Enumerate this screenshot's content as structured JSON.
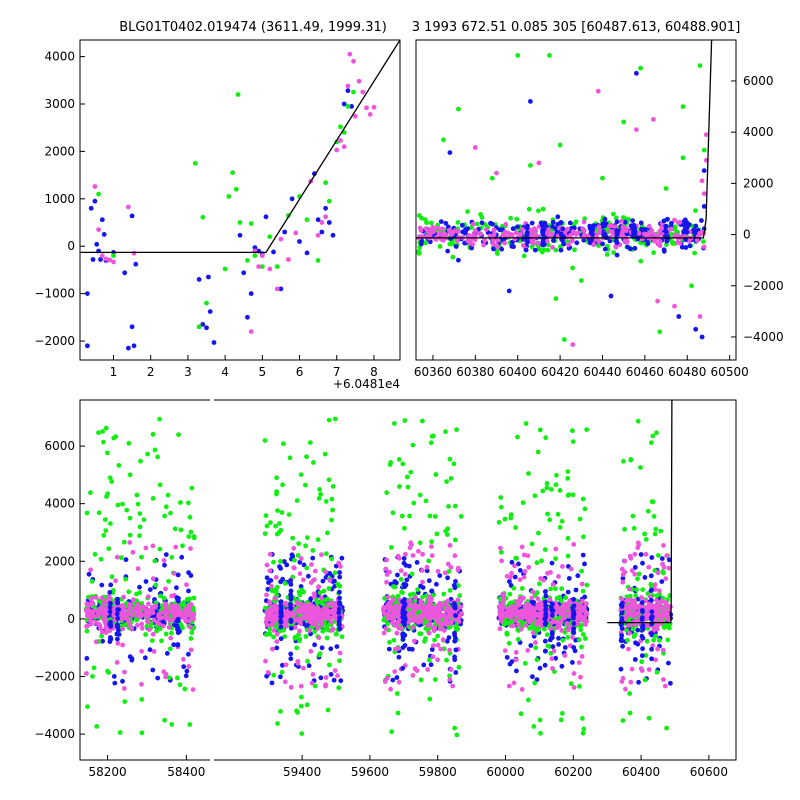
{
  "chart_data": [
    {
      "type": "scatter",
      "title": "BLG01T0402.019474 (3611.49, 1999.31)",
      "x_offset_label": "+6.0481e4",
      "xlim": [
        0.1,
        8.7
      ],
      "ylim": [
        -2400,
        4350
      ],
      "x_ticks": [
        "1",
        "2",
        "3",
        "4",
        "5",
        "6",
        "7",
        "8"
      ],
      "y_ticks": [
        "4000",
        "3000",
        "2000",
        "1000",
        "0",
        "−1000",
        "−2000"
      ],
      "model": {
        "x": [
          0.1,
          5.1,
          8.7
        ],
        "y": [
          -130,
          -130,
          4350
        ]
      },
      "series": [
        {
          "color": "#1515ee",
          "points": [
            [
              0.3,
              -1000
            ],
            [
              0.3,
              -2100
            ],
            [
              0.4,
              800
            ],
            [
              0.45,
              -280
            ],
            [
              0.5,
              950
            ],
            [
              0.55,
              40
            ],
            [
              0.6,
              -100
            ],
            [
              0.65,
              -280
            ],
            [
              0.7,
              560
            ],
            [
              0.75,
              250
            ],
            [
              0.8,
              -300
            ],
            [
              1.0,
              -130
            ],
            [
              1.3,
              -560
            ],
            [
              1.5,
              640
            ],
            [
              1.5,
              -1700
            ],
            [
              1.4,
              -2150
            ],
            [
              1.55,
              -2100
            ],
            [
              1.6,
              -380
            ],
            [
              3.3,
              -700
            ],
            [
              3.4,
              -1650
            ],
            [
              3.5,
              -1720
            ],
            [
              3.55,
              -650
            ],
            [
              3.6,
              -1380
            ],
            [
              3.7,
              -2030
            ],
            [
              4.4,
              230
            ],
            [
              4.5,
              -560
            ],
            [
              4.6,
              -1500
            ],
            [
              4.7,
              -1000
            ],
            [
              4.8,
              -30
            ],
            [
              4.9,
              -100
            ],
            [
              5.0,
              -160
            ],
            [
              5.1,
              620
            ],
            [
              5.3,
              -120
            ],
            [
              5.5,
              -900
            ],
            [
              5.6,
              300
            ],
            [
              5.8,
              1000
            ],
            [
              6.0,
              100
            ],
            [
              6.2,
              -140
            ],
            [
              6.4,
              1530
            ],
            [
              6.5,
              560
            ],
            [
              6.6,
              300
            ],
            [
              6.7,
              800
            ],
            [
              6.8,
              500
            ],
            [
              6.9,
              230
            ],
            [
              7.2,
              3000
            ],
            [
              7.3,
              3280
            ],
            [
              7.4,
              2950
            ]
          ]
        },
        {
          "color": "#11ee11",
          "points": [
            [
              0.6,
              1100
            ],
            [
              1.0,
              -200
            ],
            [
              3.2,
              1750
            ],
            [
              3.3,
              -1700
            ],
            [
              3.4,
              610
            ],
            [
              3.5,
              -1200
            ],
            [
              4.0,
              -480
            ],
            [
              4.1,
              1050
            ],
            [
              4.2,
              1550
            ],
            [
              4.3,
              1200
            ],
            [
              4.35,
              3200
            ],
            [
              4.4,
              500
            ],
            [
              4.6,
              -300
            ],
            [
              4.7,
              480
            ],
            [
              4.8,
              -200
            ],
            [
              5.0,
              -430
            ],
            [
              5.2,
              200
            ],
            [
              5.4,
              -430
            ],
            [
              5.7,
              650
            ],
            [
              6.0,
              1050
            ],
            [
              6.2,
              560
            ],
            [
              6.5,
              -300
            ],
            [
              6.7,
              1340
            ],
            [
              6.8,
              950
            ],
            [
              7.0,
              2200
            ],
            [
              7.1,
              2520
            ],
            [
              7.2,
              2400
            ],
            [
              7.3,
              2950
            ],
            [
              7.45,
              3250
            ]
          ]
        },
        {
          "color": "#ee55dd",
          "points": [
            [
              0.5,
              1260
            ],
            [
              0.6,
              350
            ],
            [
              0.7,
              -200
            ],
            [
              0.8,
              -270
            ],
            [
              0.9,
              -290
            ],
            [
              1.0,
              -330
            ],
            [
              1.4,
              830
            ],
            [
              1.55,
              -150
            ],
            [
              4.7,
              -1800
            ],
            [
              4.8,
              -100
            ],
            [
              4.9,
              -430
            ],
            [
              5.0,
              -200
            ],
            [
              5.2,
              -480
            ],
            [
              5.4,
              -900
            ],
            [
              5.5,
              150
            ],
            [
              5.7,
              -280
            ],
            [
              5.9,
              280
            ],
            [
              6.3,
              1370
            ],
            [
              6.5,
              230
            ],
            [
              6.6,
              500
            ],
            [
              6.7,
              620
            ],
            [
              7.0,
              2030
            ],
            [
              7.1,
              2230
            ],
            [
              7.2,
              2100
            ],
            [
              7.3,
              3380
            ],
            [
              7.5,
              2740
            ],
            [
              7.6,
              3480
            ],
            [
              7.7,
              3250
            ],
            [
              7.8,
              2920
            ],
            [
              7.9,
              2780
            ],
            [
              8.0,
              2930
            ],
            [
              7.35,
              4050
            ],
            [
              7.45,
              3900
            ]
          ]
        }
      ]
    },
    {
      "type": "scatter",
      "title": "3 1993 672.51 0.085 305 [60487.613, 60488.901]",
      "xlim": [
        60352,
        60503
      ],
      "ylim": [
        -4900,
        7600
      ],
      "x_ticks": [
        "60360",
        "60380",
        "60400",
        "60420",
        "60440",
        "60460",
        "60480",
        "60500"
      ],
      "y_ticks": [
        "6000",
        "4000",
        "2000",
        "0",
        "−2000",
        "−4000"
      ],
      "model": {
        "x": [
          60352,
          60487.6,
          60488.9,
          60491.5
        ],
        "y": [
          -130,
          -130,
          600,
          7600
        ]
      },
      "band": {
        "x_range": [
          60353,
          60488
        ],
        "y_range": [
          -2200,
          1700
        ],
        "count_per_series": 230
      },
      "series": [
        {
          "color": "#11ee11",
          "points": [
            [
              60400,
              7000
            ],
            [
              60406,
              2700
            ],
            [
              60412,
              1000
            ],
            [
              60420,
              3500
            ],
            [
              60440,
              2200
            ],
            [
              60450,
              4400
            ],
            [
              60458,
              6500
            ],
            [
              60470,
              1800
            ],
            [
              60478,
              3000
            ],
            [
              60365,
              3700
            ],
            [
              60372,
              4900
            ],
            [
              60388,
              2200
            ],
            [
              60418,
              -2500
            ],
            [
              60430,
              -1800
            ],
            [
              60422,
              -4100
            ],
            [
              60467,
              -3800
            ],
            [
              60482,
              -2000
            ],
            [
              60486,
              6600
            ],
            [
              60488,
              3300
            ],
            [
              60478,
              5000
            ],
            [
              60415,
              7000
            ]
          ]
        },
        {
          "color": "#1515ee",
          "points": [
            [
              60368,
              3200
            ],
            [
              60372,
              -1000
            ],
            [
              60396,
              -2200
            ],
            [
              60406,
              5200
            ],
            [
              60444,
              -2400
            ],
            [
              60456,
              6300
            ],
            [
              60476,
              -3200
            ],
            [
              60484,
              -3700
            ],
            [
              60487,
              -4000
            ],
            [
              60488,
              1100
            ],
            [
              60488,
              2500
            ]
          ]
        },
        {
          "color": "#ee55dd",
          "points": [
            [
              60380,
              3400
            ],
            [
              60390,
              2400
            ],
            [
              60426,
              -4300
            ],
            [
              60438,
              5600
            ],
            [
              60456,
              4100
            ],
            [
              60466,
              -2600
            ],
            [
              60474,
              -2800
            ],
            [
              60486,
              -3200
            ],
            [
              60489,
              3900
            ],
            [
              60489,
              2900
            ],
            [
              60488,
              1600
            ],
            [
              60487,
              2100
            ],
            [
              60464,
              4500
            ],
            [
              60410,
              2800
            ]
          ]
        }
      ]
    },
    {
      "type": "scatter",
      "xlim": [
        58130,
        60680
      ],
      "ylim": [
        -4900,
        7600
      ],
      "x_ticks": [
        "58200",
        "58400",
        "59400",
        "59600",
        "59800",
        "60000",
        "60200",
        "60400",
        "60600"
      ],
      "y_ticks": [
        "6000",
        "4000",
        "2000",
        "0",
        "−2000",
        "−4000"
      ],
      "model": {
        "x": [
          60300,
          60487.6,
          60488.9,
          60491.0
        ],
        "y": [
          -130,
          -130,
          600,
          7600
        ]
      },
      "clusters": [
        {
          "x_range": [
            58145,
            58420
          ],
          "count_per_series": 260
        },
        {
          "x_range": [
            59290,
            59520
          ],
          "count_per_series": 260
        },
        {
          "x_range": [
            59640,
            59870
          ],
          "count_per_series": 260
        },
        {
          "x_range": [
            59980,
            60240
          ],
          "count_per_series": 260
        },
        {
          "x_range": [
            60340,
            60488
          ],
          "count_per_series": 170
        }
      ],
      "series": [
        {
          "color": "#1515ee",
          "spread": [
            -1400,
            1400
          ]
        },
        {
          "color": "#11ee11",
          "spread": [
            -2400,
            3200
          ]
        },
        {
          "color": "#ee55dd",
          "spread": [
            -1500,
            1700
          ]
        }
      ]
    }
  ]
}
